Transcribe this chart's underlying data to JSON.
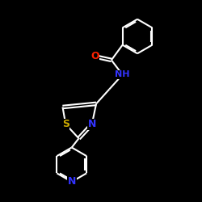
{
  "background_color": "#000000",
  "bond_color": "#ffffff",
  "atom_colors": {
    "O": "#ff2200",
    "N": "#3333ff",
    "S": "#ccaa00",
    "C": "#ffffff"
  },
  "figsize": [
    2.5,
    2.5
  ],
  "dpi": 100,
  "xlim": [
    0,
    10
  ],
  "ylim": [
    0,
    10
  ]
}
